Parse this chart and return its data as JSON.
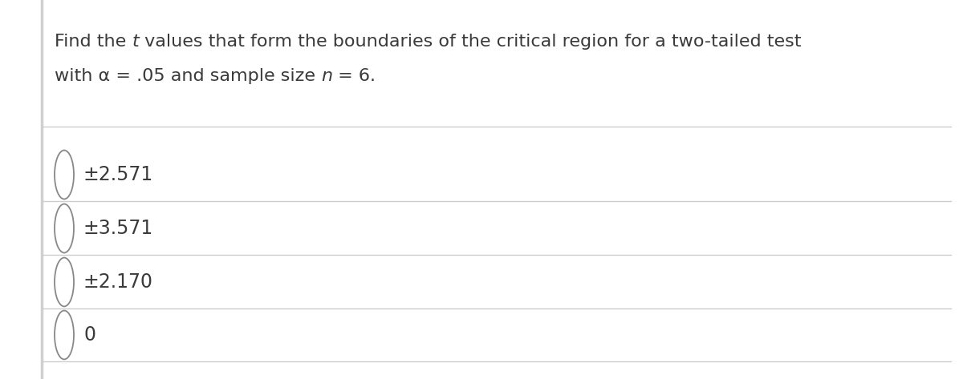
{
  "line1_parts": [
    {
      "text": "Find the ",
      "style": "normal"
    },
    {
      "text": "t",
      "style": "italic"
    },
    {
      "text": " values that form the boundaries of the critical region for a two-tailed test",
      "style": "normal"
    }
  ],
  "line2_parts": [
    {
      "text": "with α = .05 and sample size ",
      "style": "normal"
    },
    {
      "text": "n",
      "style": "italic"
    },
    {
      "text": " = 6.",
      "style": "normal"
    }
  ],
  "options": [
    "±2.571",
    "±3.571",
    "±2.170",
    "0"
  ],
  "background_color": "#ffffff",
  "text_color": "#3a3a3a",
  "line_color": "#cccccc",
  "circle_edge_color": "#888888",
  "left_bar_color": "#d0d0d0",
  "font_size_question": 16,
  "font_size_options": 17,
  "fig_width": 12.0,
  "fig_height": 4.73
}
